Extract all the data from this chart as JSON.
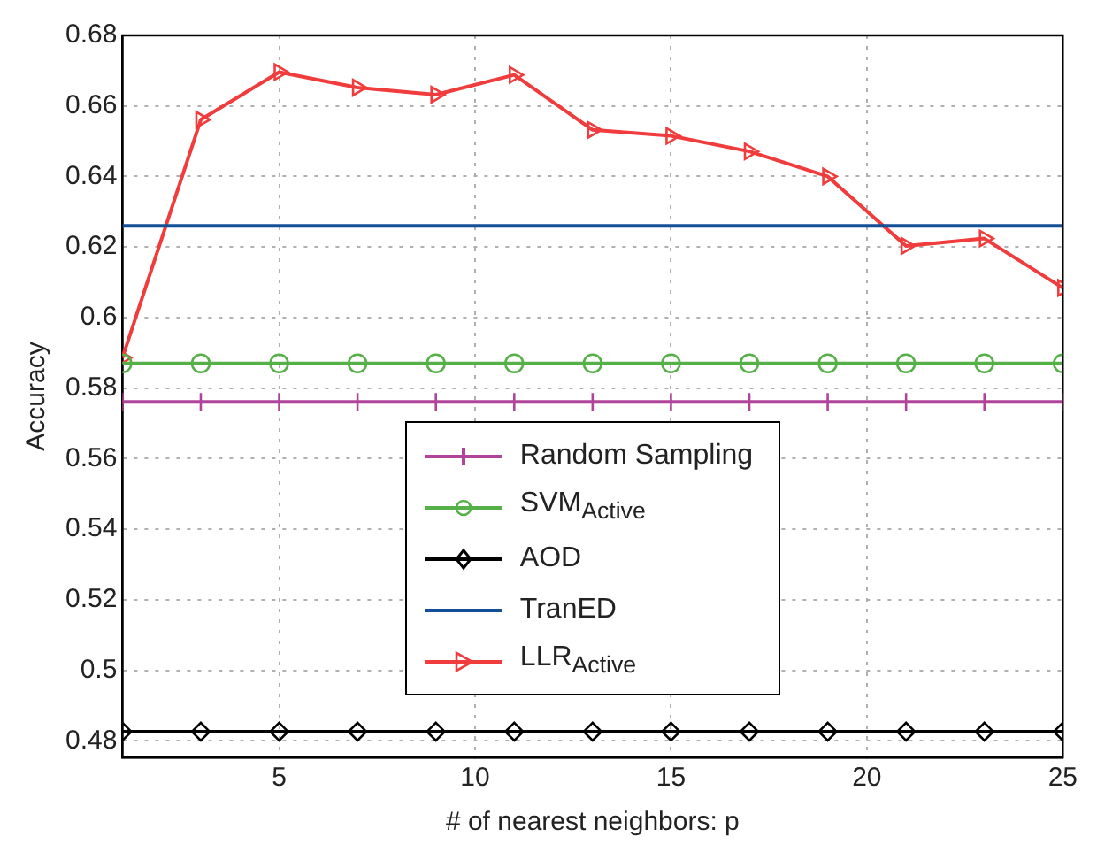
{
  "chart_data": {
    "type": "line",
    "xlabel": "# of nearest neighbors: p",
    "ylabel": "Accuracy",
    "x": [
      1,
      3,
      5,
      7,
      9,
      11,
      13,
      15,
      17,
      19,
      21,
      23,
      25
    ],
    "xlim": [
      1,
      25
    ],
    "xticks": [
      5,
      10,
      15,
      20,
      25
    ],
    "ylim": [
      0.4753,
      0.68
    ],
    "yticks": [
      0.48,
      0.5,
      0.52,
      0.54,
      0.56,
      0.58,
      0.6,
      0.62,
      0.64,
      0.66,
      0.68
    ],
    "grid": true,
    "legend": "bottom",
    "line_style": "solid",
    "series": [
      {
        "name": "Random Sampling",
        "color": "#b0449a",
        "marker": "cross",
        "values": [
          0.5761,
          0.5761,
          0.5761,
          0.5761,
          0.5761,
          0.5761,
          0.5761,
          0.5761,
          0.5761,
          0.5761,
          0.5761,
          0.5761,
          0.5761
        ]
      },
      {
        "name": "SVM$_{Active}$",
        "color": "#55b048",
        "marker": "circle",
        "values": [
          0.587,
          0.587,
          0.587,
          0.587,
          0.587,
          0.587,
          0.587,
          0.587,
          0.587,
          0.587,
          0.587,
          0.587,
          0.587
        ]
      },
      {
        "name": "AOD",
        "color": "#000000",
        "marker": "diamond",
        "values": [
          0.4826,
          0.4826,
          0.4826,
          0.4826,
          0.4826,
          0.4826,
          0.4826,
          0.4826,
          0.4826,
          0.4826,
          0.4826,
          0.4826,
          0.4826
        ]
      },
      {
        "name": "TranED",
        "color": "#134f96",
        "marker": "none",
        "values": [
          0.626,
          0.626,
          0.626,
          0.626,
          0.626,
          0.626,
          0.626,
          0.626,
          0.626,
          0.626,
          0.626,
          0.626,
          0.626
        ]
      },
      {
        "name": "LLR$_{Active}$",
        "color": "#f03c3c",
        "marker": "triangle",
        "values": [
          0.5886,
          0.6561,
          0.6696,
          0.6652,
          0.6632,
          0.6688,
          0.6532,
          0.6515,
          0.6471,
          0.64,
          0.6203,
          0.6224,
          0.6084
        ]
      }
    ]
  }
}
